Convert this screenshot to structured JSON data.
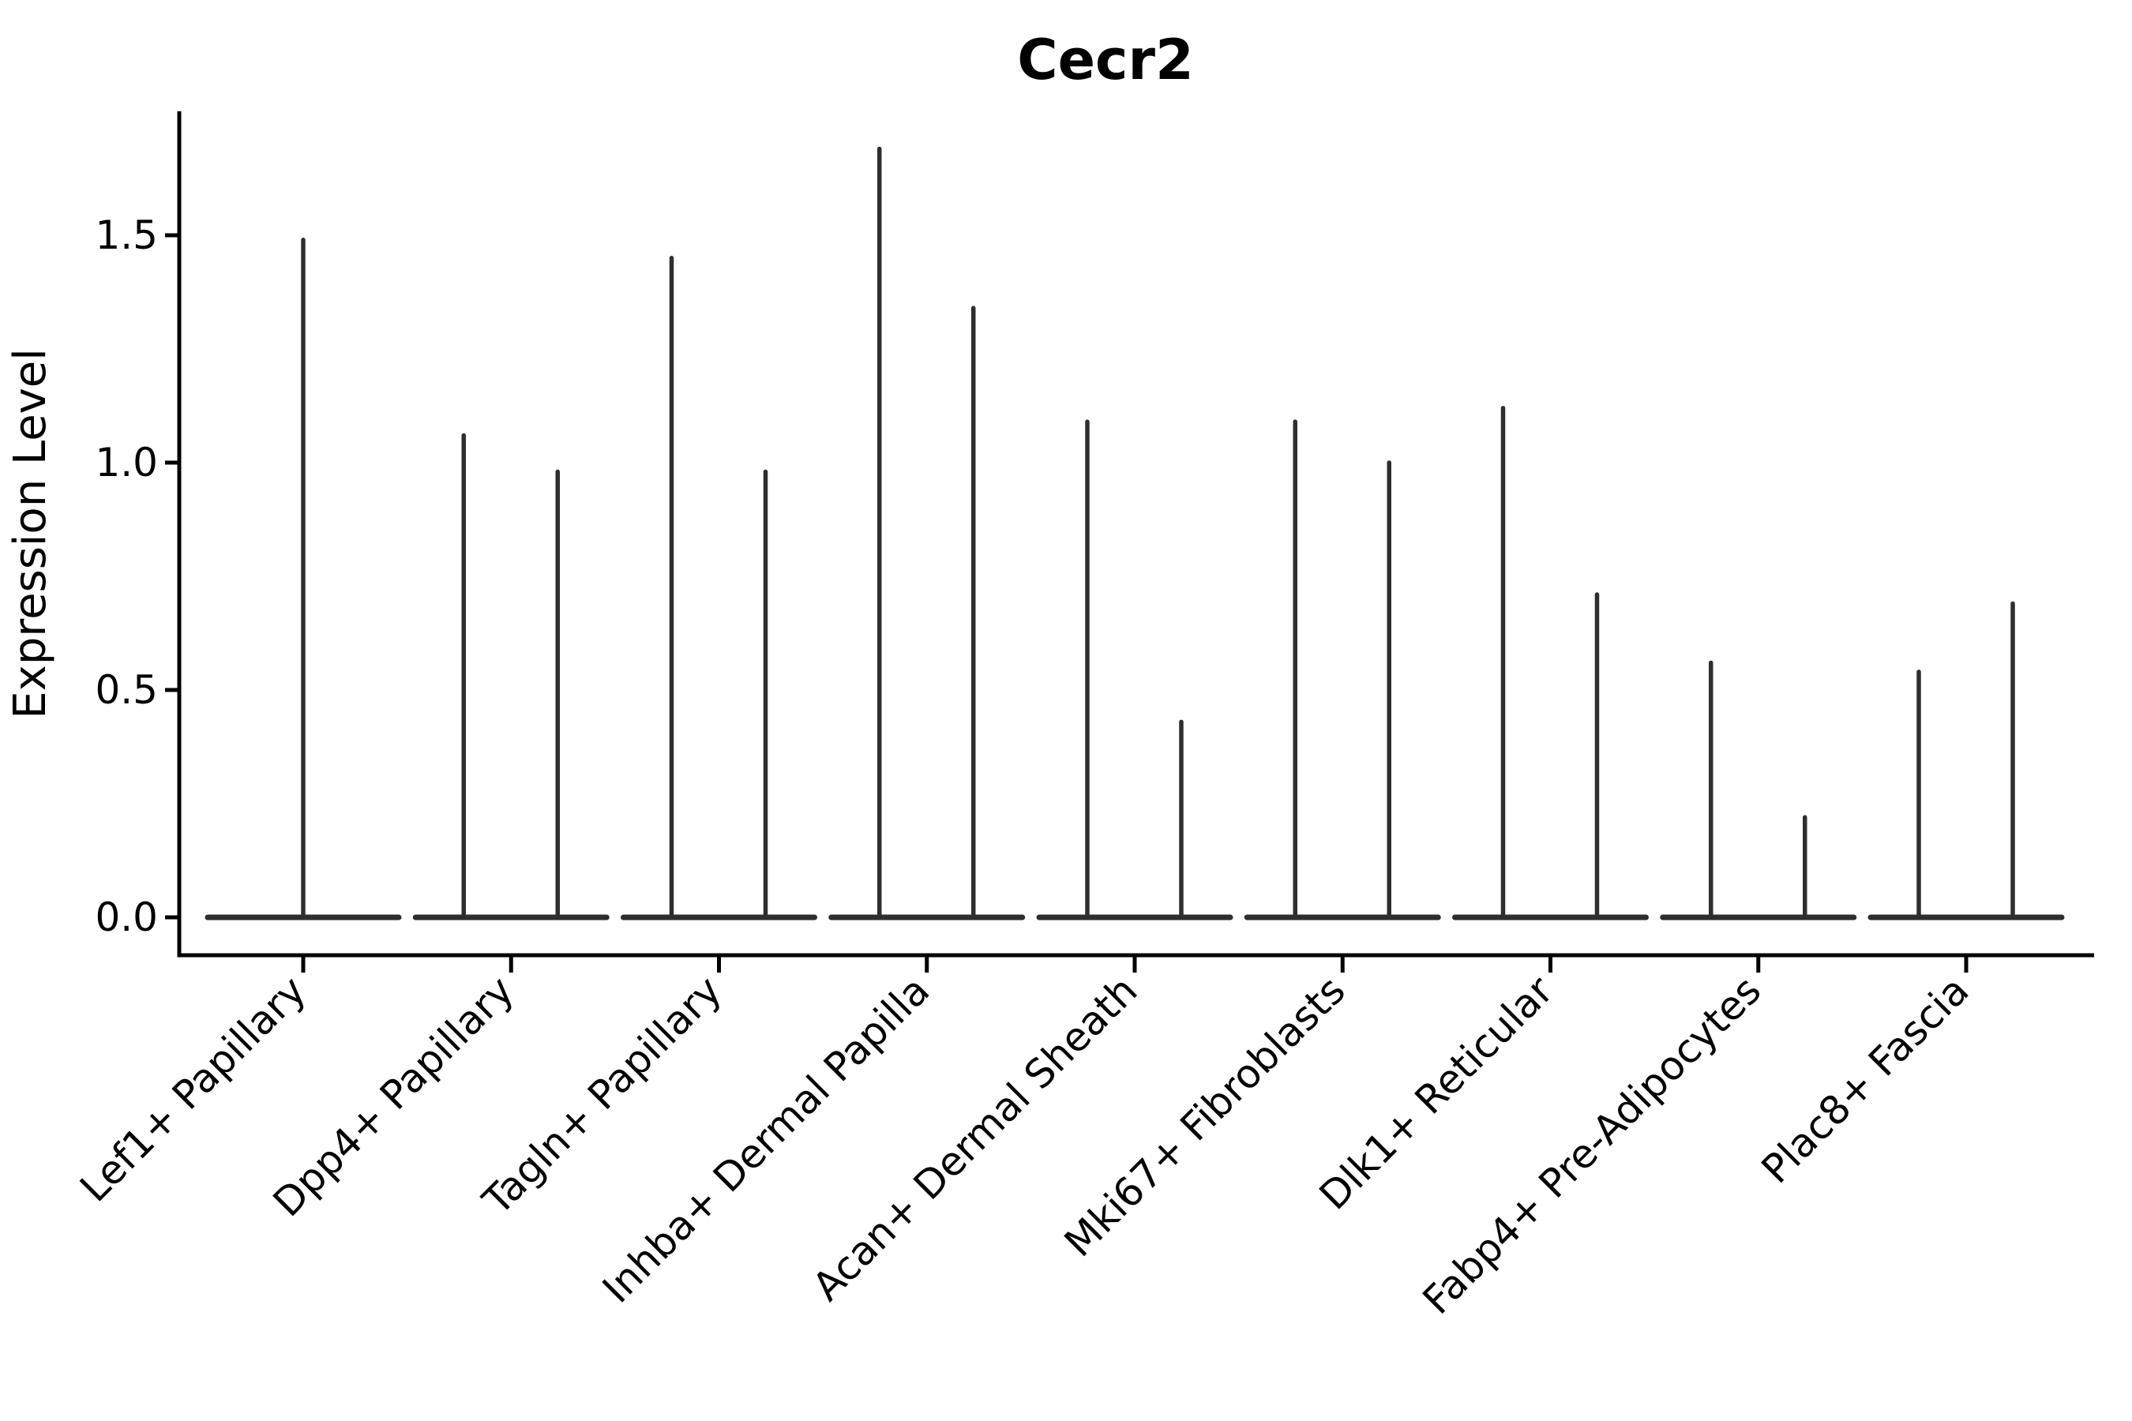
{
  "chart_data": {
    "type": "violin",
    "title": "Cecr2",
    "ylabel": "Expression Level",
    "xlabel": "",
    "grid": false,
    "legend_position": "none",
    "yticks": [
      "0.0",
      "0.5",
      "1.0",
      "1.5"
    ],
    "ytick_values": [
      0.0,
      0.5,
      1.0,
      1.5
    ],
    "ylim": [
      -0.08,
      1.77
    ],
    "categories": [
      "Lef1+ Papillary",
      "Dpp4+ Papillary",
      "Tagln+ Papillary",
      "Inhba+ Dermal Papilla",
      "Acan+ Dermal Sheath",
      "Mki67+ Fibroblasts",
      "Dlk1+ Reticular",
      "Fabp4+ Pre-Adipocytes",
      "Plac8+ Fascia"
    ],
    "violins": [
      {
        "category": "Lef1+ Papillary",
        "spike_maxima": [
          1.49
        ],
        "body_value": 0.0
      },
      {
        "category": "Dpp4+ Papillary",
        "spike_maxima": [
          1.06,
          0.98
        ],
        "body_value": 0.0
      },
      {
        "category": "Tagln+ Papillary",
        "spike_maxima": [
          1.45,
          0.98
        ],
        "body_value": 0.0
      },
      {
        "category": "Inhba+ Dermal Papilla",
        "spike_maxima": [
          1.69,
          1.34
        ],
        "body_value": 0.0
      },
      {
        "category": "Acan+ Dermal Sheath",
        "spike_maxima": [
          1.09,
          0.43
        ],
        "body_value": 0.0
      },
      {
        "category": "Mki67+ Fibroblasts",
        "spike_maxima": [
          1.09,
          1.0
        ],
        "body_value": 0.0
      },
      {
        "category": "Dlk1+ Reticular",
        "spike_maxima": [
          1.12,
          0.71
        ],
        "body_value": 0.0
      },
      {
        "category": "Fabp4+ Pre-Adipocytes",
        "spike_maxima": [
          0.56,
          0.22
        ],
        "body_value": 0.0
      },
      {
        "category": "Plac8+ Fascia",
        "spike_maxima": [
          0.54,
          0.69
        ],
        "body_value": 0.0
      }
    ]
  },
  "style": {
    "violin_color": "#2e2e2e",
    "axis_color": "#000000",
    "text_color": "#000000",
    "background": "#ffffff"
  }
}
